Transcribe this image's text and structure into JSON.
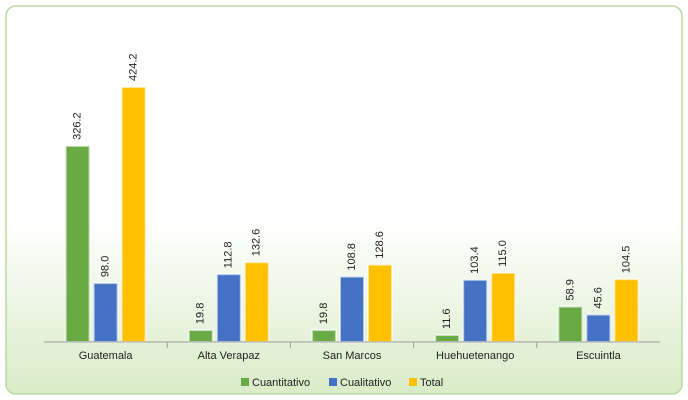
{
  "chart_data": {
    "type": "bar",
    "categories": [
      "Guatemala",
      "Alta Verapaz",
      "San Marcos",
      "Huehuetenango",
      "Escuintla"
    ],
    "series": [
      {
        "name": "Cuantitativo",
        "color": "#6aaa45",
        "values": [
          326.2,
          19.8,
          19.8,
          11.6,
          58.9
        ],
        "value_labels": [
          "326.2",
          "19.8",
          "19.8",
          "11.6",
          "58.9"
        ]
      },
      {
        "name": "Cualitativo",
        "color": "#4472c4",
        "values": [
          98.0,
          112.8,
          108.8,
          103.4,
          45.6
        ],
        "value_labels": [
          "98.0",
          "112.8",
          "108.8",
          "103.4",
          "45.6"
        ]
      },
      {
        "name": "Total",
        "color": "#ffc000",
        "values": [
          424.2,
          132.6,
          128.6,
          115.0,
          104.5
        ],
        "value_labels": [
          "424.2",
          "132.6",
          "128.6",
          "115.0",
          "104.5"
        ]
      }
    ],
    "legend": "bottom"
  }
}
